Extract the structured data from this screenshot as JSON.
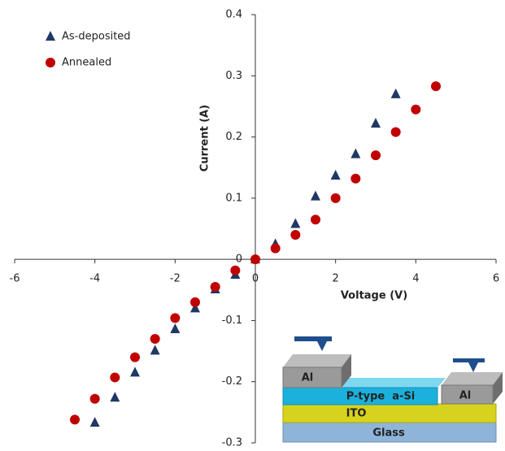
{
  "chart_data": {
    "type": "scatter",
    "x_label": "Voltage (V)",
    "y_label": "Current (A)",
    "xlim": [
      -6,
      6
    ],
    "xticks": [
      -6,
      -4,
      -2,
      0,
      2,
      4,
      6
    ],
    "ylim": [
      -0.3,
      0.4
    ],
    "yticks": [
      -0.3,
      -0.2,
      -0.1,
      0,
      0.1,
      0.2,
      0.3,
      0.4
    ],
    "legend": "top-left",
    "series": [
      {
        "name": "As-deposited",
        "color": "#1f3864",
        "marker": "triangle",
        "x": [
          -4,
          -3.5,
          -3,
          -2.5,
          -2,
          -1.5,
          -1,
          -0.5,
          0,
          0.5,
          1,
          1.5,
          2,
          2.5,
          3,
          3.5
        ],
        "values": [
          -0.267,
          -0.226,
          -0.185,
          -0.149,
          -0.114,
          -0.08,
          -0.049,
          -0.025,
          0,
          0.025,
          0.058,
          0.103,
          0.137,
          0.172,
          0.222,
          0.27
        ]
      },
      {
        "name": "Annealed",
        "color": "#c00000",
        "marker": "circle",
        "x": [
          -4.5,
          -4,
          -3.5,
          -3,
          -2.5,
          -2,
          -1.5,
          -1,
          -0.5,
          0,
          0.5,
          1,
          1.5,
          2,
          2.5,
          3,
          3.5,
          4,
          4.5
        ],
        "values": [
          -0.262,
          -0.228,
          -0.193,
          -0.16,
          -0.13,
          -0.096,
          -0.07,
          -0.045,
          -0.018,
          0,
          0.018,
          0.04,
          0.065,
          0.1,
          0.132,
          0.17,
          0.208,
          0.245,
          0.283
        ]
      }
    ]
  },
  "inset": {
    "left_contact": "Al",
    "p_layer": "P-type  a-Si",
    "ito": "ITO",
    "glass": "Glass",
    "right_contact": "Al"
  }
}
